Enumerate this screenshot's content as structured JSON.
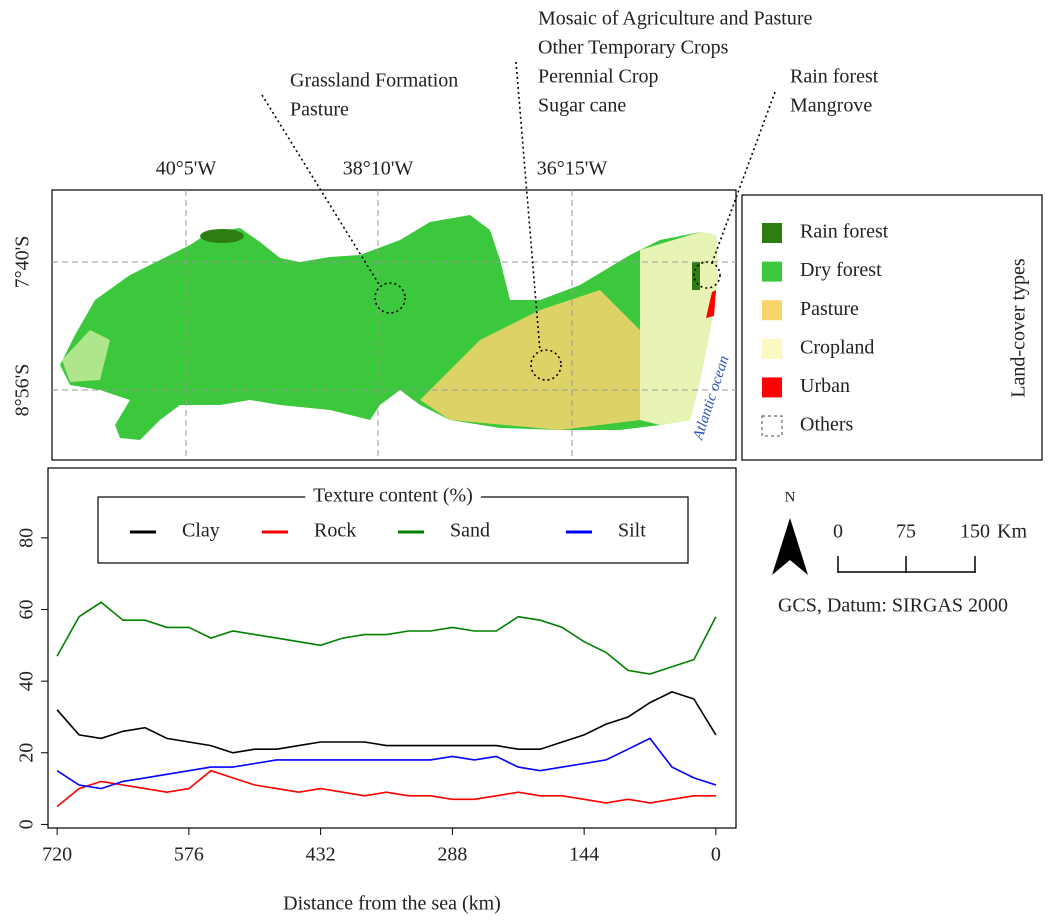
{
  "chart_data": {
    "type": "line",
    "x": [
      720,
      696,
      672,
      648,
      624,
      600,
      576,
      552,
      528,
      504,
      480,
      456,
      432,
      408,
      384,
      360,
      336,
      312,
      288,
      264,
      240,
      216,
      192,
      168,
      144,
      120,
      96,
      72,
      48,
      24,
      0
    ],
    "series": [
      {
        "name": "Clay",
        "color": "#000000",
        "values": [
          32,
          25,
          24,
          26,
          27,
          24,
          23,
          22,
          20,
          21,
          21,
          22,
          23,
          23,
          23,
          22,
          22,
          22,
          22,
          22,
          22,
          21,
          21,
          23,
          25,
          28,
          30,
          34,
          37,
          35,
          25
        ]
      },
      {
        "name": "Rock",
        "color": "#ff0000",
        "values": [
          5,
          10,
          12,
          11,
          10,
          9,
          10,
          15,
          13,
          11,
          10,
          9,
          10,
          9,
          8,
          9,
          8,
          8,
          7,
          7,
          8,
          9,
          8,
          8,
          7,
          6,
          7,
          6,
          7,
          8,
          8
        ]
      },
      {
        "name": "Sand",
        "color": "#008000",
        "values": [
          47,
          58,
          62,
          57,
          57,
          55,
          55,
          52,
          54,
          53,
          52,
          51,
          50,
          52,
          53,
          53,
          54,
          54,
          55,
          54,
          54,
          58,
          57,
          55,
          51,
          48,
          43,
          42,
          44,
          46,
          58
        ]
      },
      {
        "name": "Silt",
        "color": "#0000ff",
        "values": [
          15,
          11,
          10,
          12,
          13,
          14,
          15,
          16,
          16,
          17,
          18,
          18,
          18,
          18,
          18,
          18,
          18,
          18,
          19,
          18,
          19,
          16,
          15,
          16,
          17,
          18,
          21,
          24,
          16,
          13,
          11
        ]
      }
    ],
    "legend_title": "Texture content (%)",
    "x_label": "Distance from the sea (km)",
    "xlim": [
      730,
      -22
    ],
    "xticks": [
      720,
      576,
      432,
      288,
      144,
      0
    ],
    "ylim": [
      -1,
      99.5
    ],
    "yticks": [
      0,
      20,
      40,
      60,
      80
    ]
  },
  "map": {
    "longitude_labels": [
      "40°5'W",
      "38°10'W",
      "36°15'W"
    ],
    "latitude_labels": [
      "7°40'S",
      "8°56'S"
    ],
    "ocean_label": "Atlantic ocean",
    "legend_title": "Land-cover types",
    "legend": [
      {
        "label": "Rain forest",
        "color": "#2e7d12"
      },
      {
        "label": "Dry forest",
        "color": "#3cc83c"
      },
      {
        "label": "Pasture",
        "color": "#f8d46c"
      },
      {
        "label": "Cropland",
        "color": "#fbf8c0"
      },
      {
        "label": "Urban",
        "color": "#ff0000"
      },
      {
        "label": "Others",
        "color": "none"
      }
    ],
    "annotations": [
      [
        "Grassland Formation",
        "Pasture"
      ],
      [
        "Mosaic of Agriculture and Pasture",
        "Other Temporary Crops",
        "Perennial Crop",
        "Sugar cane"
      ],
      [
        "Rain forest",
        "Mangrove"
      ]
    ],
    "north": "N",
    "scale_labels": [
      "0",
      "75",
      "150",
      "Km"
    ],
    "datum": "GCS, Datum: SIRGAS 2000"
  }
}
